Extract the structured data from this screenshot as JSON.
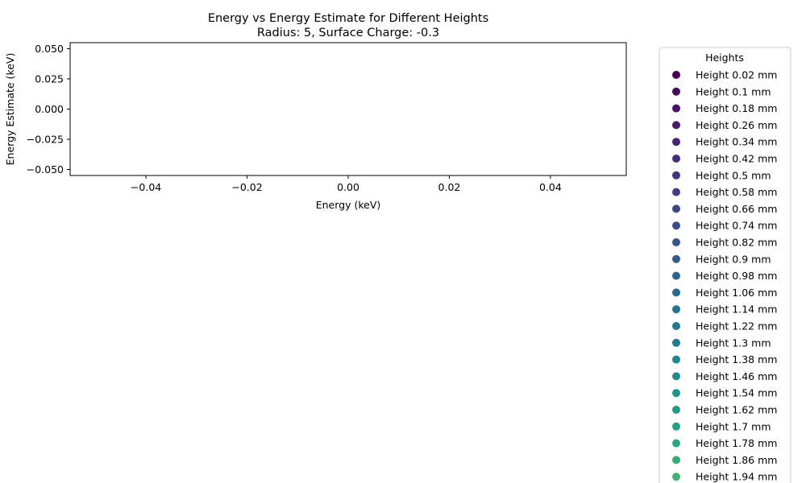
{
  "chart_data": {
    "type": "scatter",
    "title": "Energy vs Energy Estimate for Different Heights",
    "subtitle": "Radius: 5, Surface Charge: -0.3",
    "xlabel": "Energy (keV)",
    "ylabel": "Energy Estimate (keV)",
    "xlim": [
      -0.055,
      0.055
    ],
    "ylim": [
      -0.055,
      0.055
    ],
    "xticks": [
      -0.04,
      -0.02,
      0.0,
      0.02,
      0.04
    ],
    "xtick_labels": [
      "−0.04",
      "−0.02",
      "0.00",
      "0.02",
      "0.04"
    ],
    "yticks": [
      0.05,
      0.025,
      0.0,
      -0.025,
      -0.05
    ],
    "ytick_labels": [
      "0.050",
      "0.025",
      "0.000",
      "−0.025",
      "−0.050"
    ],
    "grid": false,
    "legend_placement": "outside-right",
    "legend_title": "Heights",
    "series": [
      {
        "name": "Height 0.02 mm",
        "color": "#440154",
        "x": [],
        "y": []
      },
      {
        "name": "Height 0.1 mm",
        "color": "#450a5c",
        "x": [],
        "y": []
      },
      {
        "name": "Height 0.18 mm",
        "color": "#471365",
        "x": [],
        "y": []
      },
      {
        "name": "Height 0.26 mm",
        "color": "#471c6e",
        "x": [],
        "y": []
      },
      {
        "name": "Height 0.34 mm",
        "color": "#462477",
        "x": [],
        "y": []
      },
      {
        "name": "Height 0.42 mm",
        "color": "#452d7d",
        "x": [],
        "y": []
      },
      {
        "name": "Height 0.5 mm",
        "color": "#433582",
        "x": [],
        "y": []
      },
      {
        "name": "Height 0.58 mm",
        "color": "#403d86",
        "x": [],
        "y": []
      },
      {
        "name": "Height 0.66 mm",
        "color": "#3c4589",
        "x": [],
        "y": []
      },
      {
        "name": "Height 0.74 mm",
        "color": "#384d8b",
        "x": [],
        "y": []
      },
      {
        "name": "Height 0.82 mm",
        "color": "#33558c",
        "x": [],
        "y": []
      },
      {
        "name": "Height 0.9 mm",
        "color": "#2f5c8d",
        "x": [],
        "y": []
      },
      {
        "name": "Height 0.98 mm",
        "color": "#2b638e",
        "x": [],
        "y": []
      },
      {
        "name": "Height 1.06 mm",
        "color": "#286a8e",
        "x": [],
        "y": []
      },
      {
        "name": "Height 1.14 mm",
        "color": "#25718e",
        "x": [],
        "y": []
      },
      {
        "name": "Height 1.22 mm",
        "color": "#22788e",
        "x": [],
        "y": []
      },
      {
        "name": "Height 1.3 mm",
        "color": "#1f7e8d",
        "x": [],
        "y": []
      },
      {
        "name": "Height 1.38 mm",
        "color": "#1e858c",
        "x": [],
        "y": []
      },
      {
        "name": "Height 1.46 mm",
        "color": "#1e8c8a",
        "x": [],
        "y": []
      },
      {
        "name": "Height 1.54 mm",
        "color": "#1f9387",
        "x": [],
        "y": []
      },
      {
        "name": "Height 1.62 mm",
        "color": "#229984",
        "x": [],
        "y": []
      },
      {
        "name": "Height 1.7 mm",
        "color": "#27a07f",
        "x": [],
        "y": []
      },
      {
        "name": "Height 1.78 mm",
        "color": "#2ea67b",
        "x": [],
        "y": []
      },
      {
        "name": "Height 1.86 mm",
        "color": "#37ac76",
        "x": [],
        "y": []
      },
      {
        "name": "Height 1.94 mm",
        "color": "#41b270",
        "x": [],
        "y": []
      }
    ]
  }
}
